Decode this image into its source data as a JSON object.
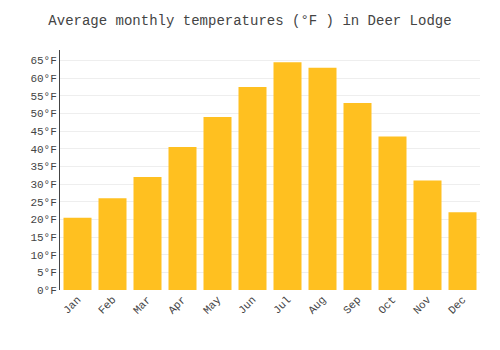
{
  "chart_data": {
    "type": "bar",
    "title": "Average monthly temperatures (°F ) in Deer Lodge",
    "categories": [
      "Jan",
      "Feb",
      "Mar",
      "Apr",
      "May",
      "Jun",
      "Jul",
      "Aug",
      "Sep",
      "Oct",
      "Nov",
      "Dec"
    ],
    "values": [
      20.5,
      26.0,
      32.0,
      40.5,
      49.0,
      57.5,
      64.5,
      63.0,
      53.0,
      43.5,
      31.0,
      22.0
    ],
    "color": "#FFC020",
    "ylim": [
      0,
      68
    ],
    "yticks": [
      {
        "value": 0,
        "label": "0°F"
      },
      {
        "value": 5,
        "label": "5°F"
      },
      {
        "value": 10,
        "label": "10°F"
      },
      {
        "value": 15,
        "label": "15°F"
      },
      {
        "value": 20,
        "label": "20°F"
      },
      {
        "value": 25,
        "label": "25°F"
      },
      {
        "value": 30,
        "label": "30°F"
      },
      {
        "value": 35,
        "label": "35°F"
      },
      {
        "value": 40,
        "label": "40°F"
      },
      {
        "value": 45,
        "label": "45°F"
      },
      {
        "value": 50,
        "label": "50°F"
      },
      {
        "value": 55,
        "label": "55°F"
      },
      {
        "value": 60,
        "label": "60°F"
      },
      {
        "value": 65,
        "label": "65°F"
      }
    ],
    "grid": true
  }
}
